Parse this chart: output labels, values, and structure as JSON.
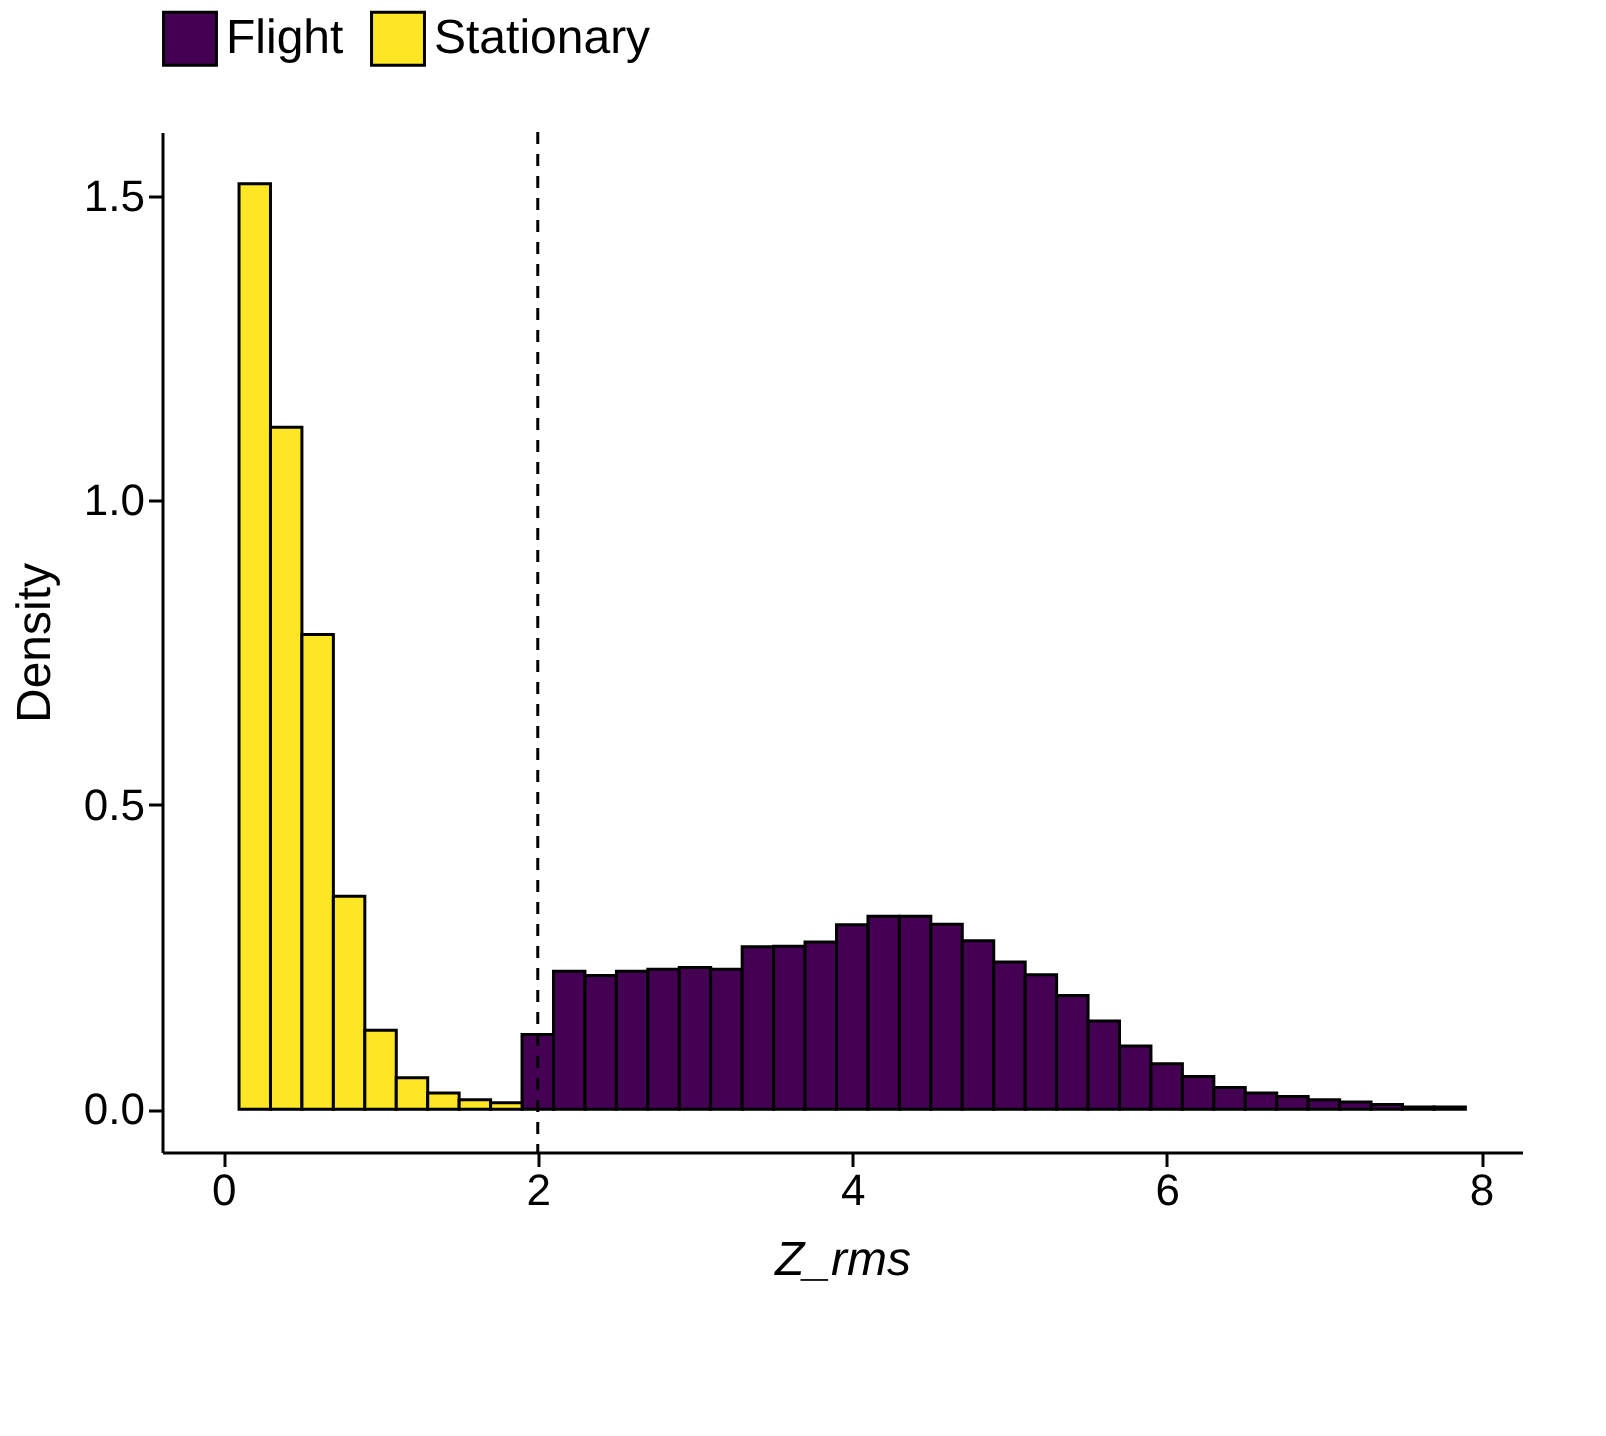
{
  "chart_data": {
    "type": "histogram",
    "xlabel": "Z_rms",
    "ylabel": "Density",
    "bins": [
      0.1,
      0.3,
      0.5,
      0.7,
      0.9,
      1.1,
      1.3,
      1.5,
      1.7,
      1.9,
      2.1,
      2.3,
      2.5,
      2.7,
      2.9,
      3.1,
      3.3,
      3.5,
      3.7,
      3.9,
      4.1,
      4.3,
      4.5,
      4.7,
      4.9,
      5.1,
      5.3,
      5.5,
      5.7,
      5.9,
      6.1,
      6.3,
      6.5,
      6.7,
      6.9,
      7.1,
      7.3,
      7.5,
      7.7,
      7.9
    ],
    "series": [
      {
        "name": "Flight",
        "color": "#440154",
        "values": [
          null,
          null,
          null,
          null,
          null,
          null,
          null,
          null,
          null,
          0.123,
          0.227,
          0.22,
          0.227,
          0.23,
          0.233,
          0.23,
          0.267,
          0.268,
          0.275,
          0.303,
          0.317,
          0.317,
          0.304,
          0.277,
          0.242,
          0.221,
          0.187,
          0.145,
          0.104,
          0.075,
          0.054,
          0.036,
          0.027,
          0.021,
          0.016,
          0.012,
          0.008,
          0.004,
          0.004
        ]
      },
      {
        "name": "Stationary",
        "color": "#fde725",
        "values": [
          1.52,
          1.12,
          0.78,
          0.35,
          0.13,
          0.052,
          0.027,
          0.016,
          0.011,
          null,
          null,
          null,
          null,
          null,
          null,
          null,
          null,
          null,
          null,
          null,
          null,
          null,
          null,
          null,
          null,
          null,
          null,
          null,
          null,
          null,
          null,
          null,
          null,
          null,
          null,
          null,
          null,
          null,
          null
        ]
      }
    ],
    "xlim": [
      -0.39,
      8.26
    ],
    "xticks": [
      0,
      2,
      4,
      6,
      8
    ],
    "ylim": [
      -0.07,
      1.605
    ],
    "yticks": [
      {
        "value": 0,
        "label": "0.0"
      },
      {
        "value": 0.5,
        "label": "0.5"
      },
      {
        "value": 1.0,
        "label": "1.0"
      },
      {
        "value": 1.5,
        "label": "1.5"
      }
    ],
    "ref_lines": [
      {
        "axis": "x",
        "value": 2,
        "label": null,
        "line_style": "dashed"
      }
    ],
    "legend": "top",
    "grid": false
  }
}
